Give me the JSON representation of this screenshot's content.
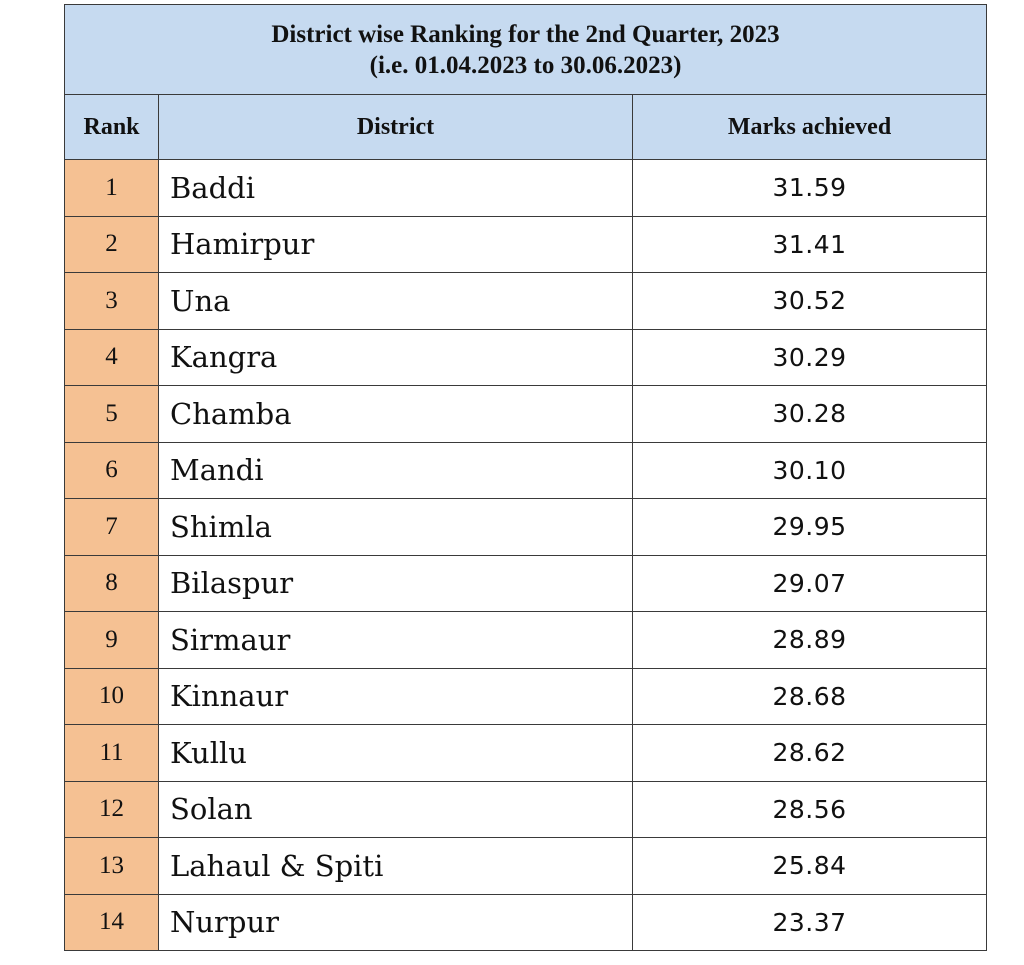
{
  "title": {
    "line1": "District wise Ranking for the 2nd Quarter, 2023",
    "line2": "(i.e. 01.04.2023 to 30.06.2023)"
  },
  "columns": {
    "rank": "Rank",
    "district": "District",
    "marks": "Marks achieved"
  },
  "colors": {
    "header_bg": "#c6daf0",
    "rank_bg": "#f5c193",
    "border": "#3a3a3a"
  },
  "rows": [
    {
      "rank": "1",
      "district": "Baddi",
      "marks": "31.59"
    },
    {
      "rank": "2",
      "district": "Hamirpur",
      "marks": "31.41"
    },
    {
      "rank": "3",
      "district": "Una",
      "marks": "30.52"
    },
    {
      "rank": "4",
      "district": "Kangra",
      "marks": "30.29"
    },
    {
      "rank": "5",
      "district": "Chamba",
      "marks": "30.28"
    },
    {
      "rank": "6",
      "district": "Mandi",
      "marks": "30.10"
    },
    {
      "rank": "7",
      "district": "Shimla",
      "marks": "29.95"
    },
    {
      "rank": "8",
      "district": "Bilaspur",
      "marks": "29.07"
    },
    {
      "rank": "9",
      "district": "Sirmaur",
      "marks": "28.89"
    },
    {
      "rank": "10",
      "district": "Kinnaur",
      "marks": "28.68"
    },
    {
      "rank": "11",
      "district": "Kullu",
      "marks": "28.62"
    },
    {
      "rank": "12",
      "district": "Solan",
      "marks": "28.56"
    },
    {
      "rank": "13",
      "district": "Lahaul & Spiti",
      "marks": "25.84"
    },
    {
      "rank": "14",
      "district": "Nurpur",
      "marks": "23.37"
    }
  ]
}
